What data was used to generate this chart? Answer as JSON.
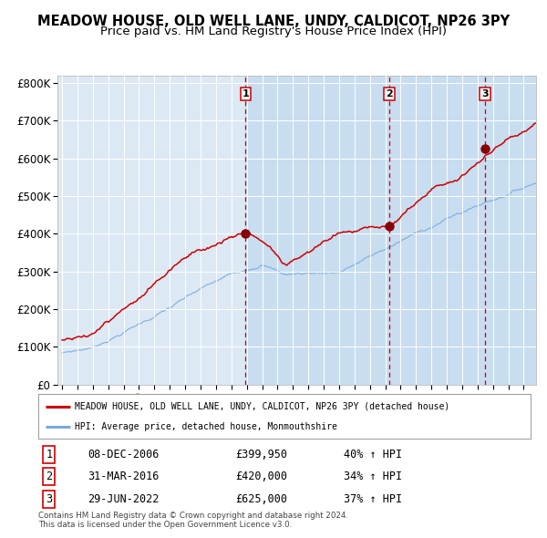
{
  "title": "MEADOW HOUSE, OLD WELL LANE, UNDY, CALDICOT, NP26 3PY",
  "subtitle": "Price paid vs. HM Land Registry's House Price Index (HPI)",
  "title_fontsize": 10.5,
  "subtitle_fontsize": 9.5,
  "background_color": "#ffffff",
  "plot_bg_color": "#dce9f5",
  "ylabel_ticks": [
    "£0",
    "£100K",
    "£200K",
    "£300K",
    "£400K",
    "£500K",
    "£600K",
    "£700K",
    "£800K"
  ],
  "ytick_values": [
    0,
    100000,
    200000,
    300000,
    400000,
    500000,
    600000,
    700000,
    800000
  ],
  "ylim": [
    0,
    820000
  ],
  "xlim_start": 1994.7,
  "xlim_end": 2025.8,
  "red_line_color": "#cc0000",
  "blue_line_color": "#7aaadd",
  "marker_color": "#880000",
  "vline_color": "#cc0000",
  "purchase_dates": [
    2006.93,
    2016.25,
    2022.49
  ],
  "purchase_prices": [
    399950,
    420000,
    625000
  ],
  "purchase_labels": [
    "1",
    "2",
    "3"
  ],
  "legend_red": "MEADOW HOUSE, OLD WELL LANE, UNDY, CALDICOT, NP26 3PY (detached house)",
  "legend_blue": "HPI: Average price, detached house, Monmouthshire",
  "table_data": [
    [
      "1",
      "08-DEC-2006",
      "£399,950",
      "40% ↑ HPI"
    ],
    [
      "2",
      "31-MAR-2016",
      "£420,000",
      "34% ↑ HPI"
    ],
    [
      "3",
      "29-JUN-2022",
      "£625,000",
      "37% ↑ HPI"
    ]
  ],
  "footer_line1": "Contains HM Land Registry data © Crown copyright and database right 2024.",
  "footer_line2": "This data is licensed under the Open Government Licence v3.0.",
  "grid_color": "#ffffff",
  "shaded_region_color": "#c8ddf0"
}
